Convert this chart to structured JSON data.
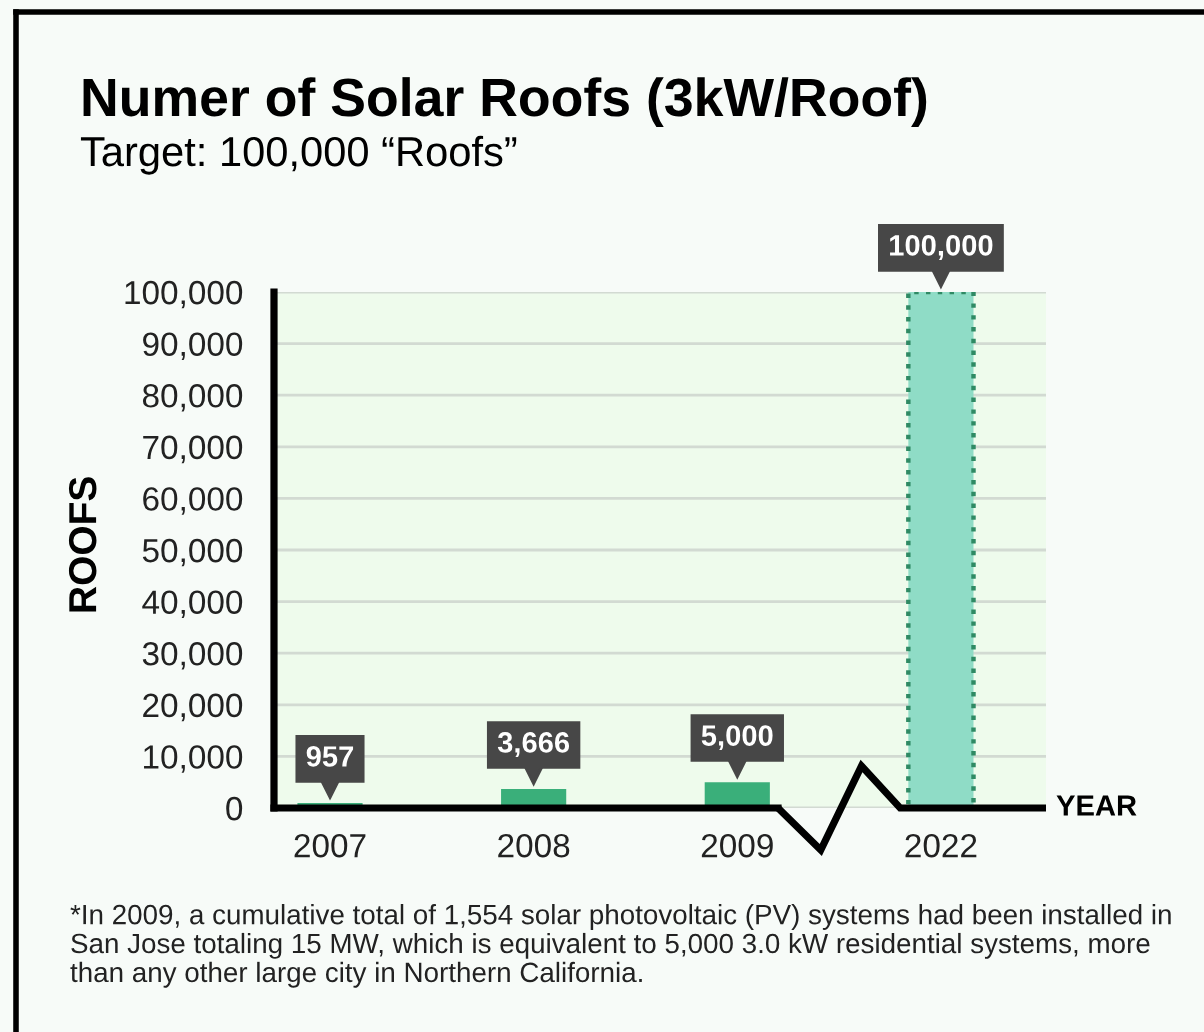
{
  "chart_data": {
    "type": "bar",
    "title": "Numer of Solar Roofs (3kW/Roof)",
    "subtitle": "Target: 100,000 “Roofs”",
    "xlabel": "YEAR",
    "ylabel": "ROOFS",
    "categories": [
      "2007",
      "2008",
      "2009",
      "2022"
    ],
    "series": [
      {
        "color": "#3aaf7a",
        "values": [
          957,
          3666,
          5000,
          null
        ],
        "value_labels": [
          "957",
          "3,666",
          "5,000",
          null
        ]
      },
      {
        "color": "#8fdcc6",
        "values": [
          null,
          null,
          null,
          100000
        ],
        "value_labels": [
          null,
          null,
          null,
          "100,000"
        ],
        "line_style": "dotted"
      }
    ],
    "ylim": [
      0,
      100000
    ],
    "yticks": [
      0,
      {
        "value": 10000,
        "label": "10,000"
      },
      {
        "value": 20000,
        "label": "20,000"
      },
      {
        "value": 30000,
        "label": "30,000"
      },
      {
        "value": 40000,
        "label": "40,000"
      },
      {
        "value": 50000,
        "label": "50,000"
      },
      {
        "value": 60000,
        "label": "60,000"
      },
      {
        "value": 70000,
        "label": "70,000"
      },
      {
        "value": 80000,
        "label": "80,000"
      },
      {
        "value": 90000,
        "label": "90,000"
      },
      {
        "value": 100000,
        "label": "100,000"
      }
    ],
    "grid": "y",
    "annotations": [
      "*In 2009, a cumulative total of 1,554 solar photovoltaic (PV) systems had been installed in San Jose totaling 15 MW, which is equivalent to 5,000 3.0 kW residential systems, more than any other large city in Northern California."
    ]
  }
}
